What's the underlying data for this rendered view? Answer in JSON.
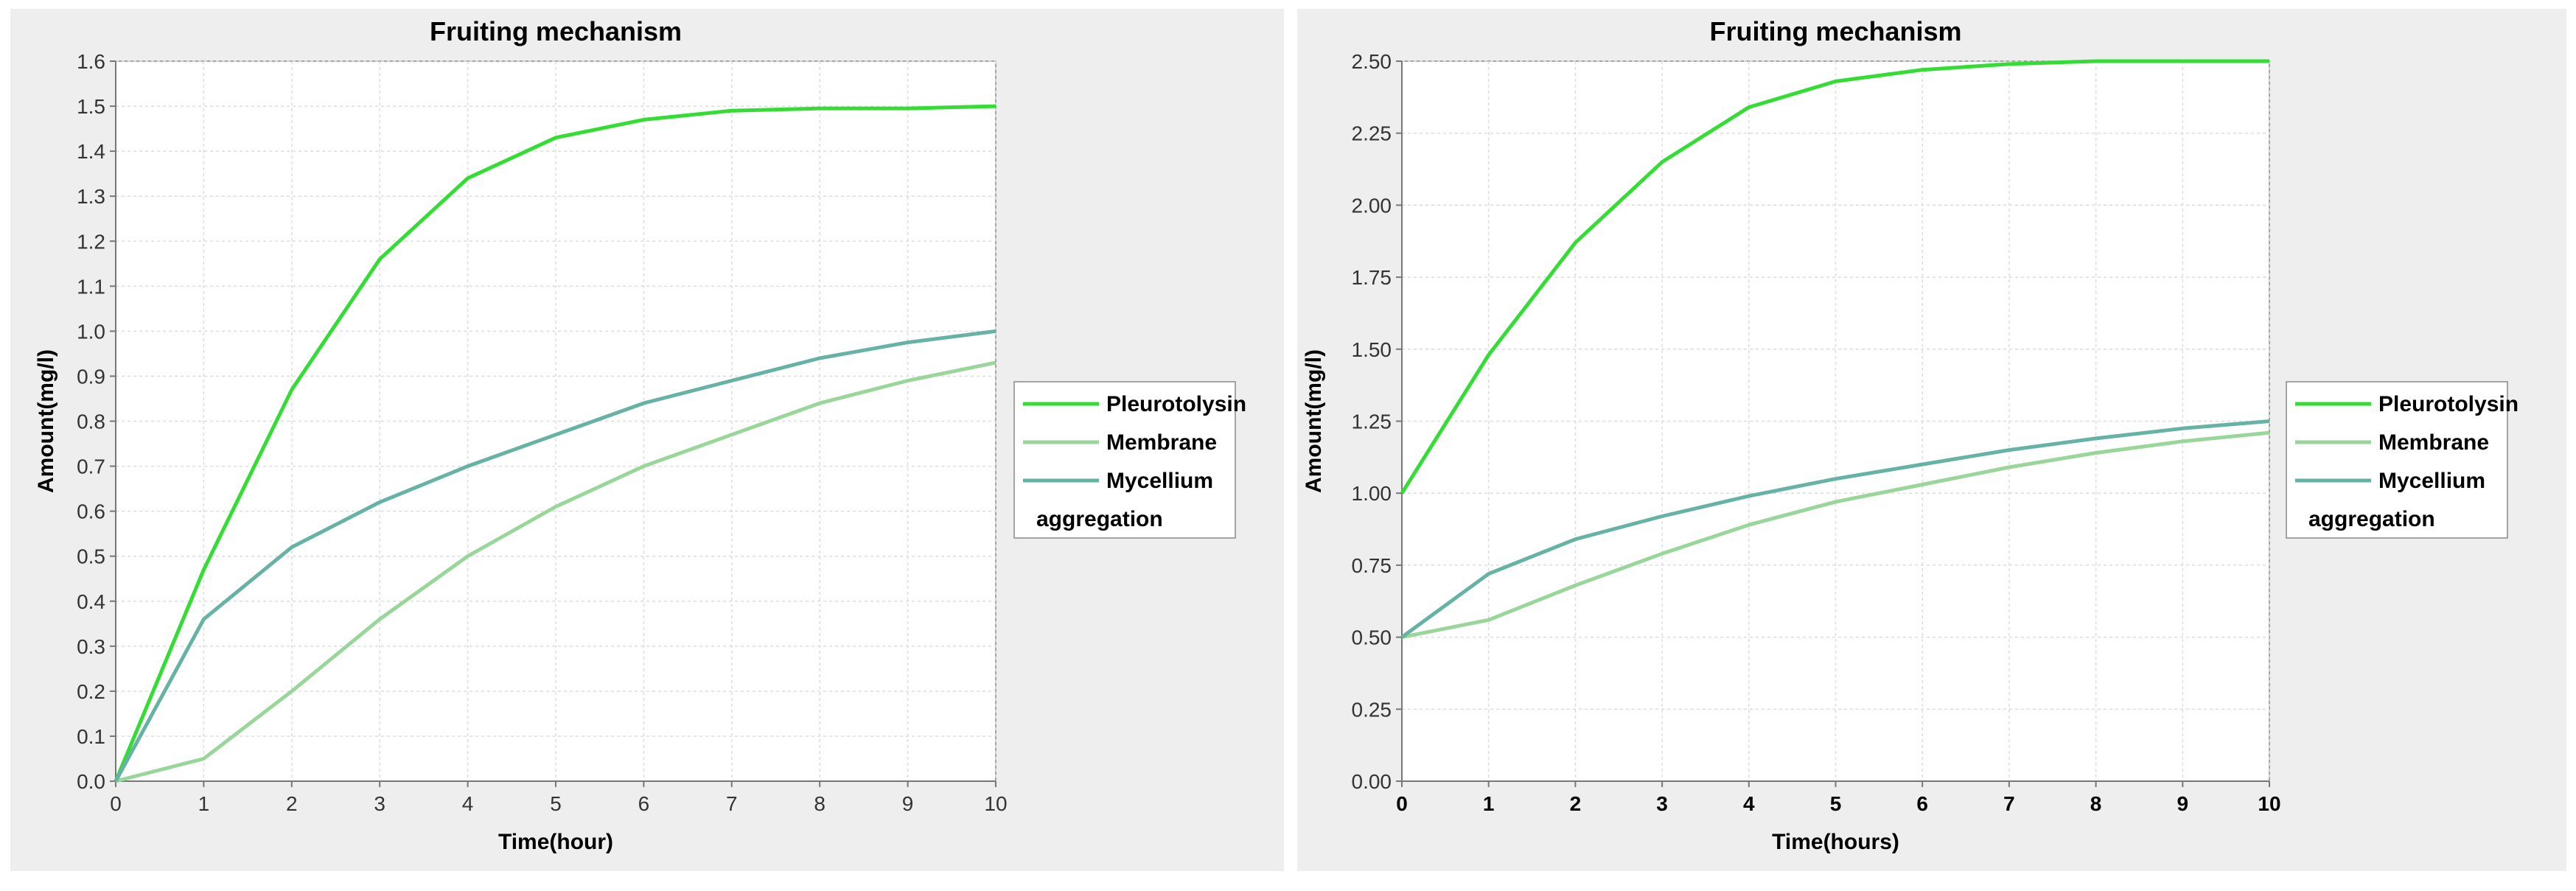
{
  "chart_data": [
    {
      "type": "line",
      "title": "Fruiting mechanism",
      "xlabel": "Time(hour)",
      "ylabel": "Amount(mg/l)",
      "xlim": [
        0,
        10
      ],
      "ylim": [
        0,
        1.6
      ],
      "x_ticks": [
        0,
        1,
        2,
        3,
        4,
        5,
        6,
        7,
        8,
        9,
        10
      ],
      "y_ticks": [
        0.0,
        0.1,
        0.2,
        0.3,
        0.4,
        0.5,
        0.6,
        0.7,
        0.8,
        0.9,
        1.0,
        1.1,
        1.2,
        1.3,
        1.4,
        1.5,
        1.6
      ],
      "y_tick_labels": [
        "0.0",
        "0.1",
        "0.2",
        "0.3",
        "0.4",
        "0.5",
        "0.6",
        "0.7",
        "0.8",
        "0.9",
        "1.0",
        "1.1",
        "1.2",
        "1.3",
        "1.4",
        "1.5",
        "1.6"
      ],
      "grid": true,
      "legend_position": "right",
      "x": [
        0,
        1,
        2,
        3,
        4,
        5,
        6,
        7,
        8,
        9,
        10
      ],
      "series": [
        {
          "name": "Pleurotolysin",
          "color": "#33dd33",
          "values": [
            0.0,
            0.47,
            0.87,
            1.16,
            1.34,
            1.43,
            1.47,
            1.49,
            1.495,
            1.495,
            1.5
          ]
        },
        {
          "name": "Membrane",
          "color": "#99d699",
          "values": [
            0.0,
            0.05,
            0.2,
            0.36,
            0.5,
            0.61,
            0.7,
            0.77,
            0.84,
            0.89,
            0.93
          ]
        },
        {
          "name": "Mycellium aggregation",
          "legend_lines": [
            "Mycellium",
            "aggregation"
          ],
          "color": "#66b3a6",
          "values": [
            0.0,
            0.36,
            0.52,
            0.62,
            0.7,
            0.77,
            0.84,
            0.89,
            0.94,
            0.975,
            1.0
          ]
        }
      ]
    },
    {
      "type": "line",
      "title": "Fruiting mechanism",
      "xlabel": "Time(hours)",
      "ylabel": "Amount(mg/l)",
      "xlim": [
        0,
        10
      ],
      "ylim": [
        0,
        2.5
      ],
      "x_ticks": [
        0,
        1,
        2,
        3,
        4,
        5,
        6,
        7,
        8,
        9,
        10
      ],
      "y_ticks": [
        0.0,
        0.25,
        0.5,
        0.75,
        1.0,
        1.25,
        1.5,
        1.75,
        2.0,
        2.25,
        2.5
      ],
      "y_tick_labels": [
        "0.00",
        "0.25",
        "0.50",
        "0.75",
        "1.00",
        "1.25",
        "1.50",
        "1.75",
        "2.00",
        "2.25",
        "2.50"
      ],
      "grid": true,
      "legend_position": "right",
      "x": [
        0,
        1,
        2,
        3,
        4,
        5,
        6,
        7,
        8,
        9,
        10
      ],
      "series": [
        {
          "name": "Pleurotolysin",
          "color": "#33dd33",
          "values": [
            1.0,
            1.48,
            1.87,
            2.15,
            2.34,
            2.43,
            2.47,
            2.49,
            2.5,
            2.5,
            2.5
          ]
        },
        {
          "name": "Membrane",
          "color": "#99d699",
          "values": [
            0.5,
            0.56,
            0.68,
            0.79,
            0.89,
            0.97,
            1.03,
            1.09,
            1.14,
            1.18,
            1.21
          ]
        },
        {
          "name": "Mycellium aggregation",
          "legend_lines": [
            "Mycellium",
            "aggregation"
          ],
          "color": "#66b3a6",
          "values": [
            0.5,
            0.72,
            0.84,
            0.92,
            0.99,
            1.05,
            1.1,
            1.15,
            1.19,
            1.225,
            1.25
          ]
        }
      ]
    }
  ]
}
